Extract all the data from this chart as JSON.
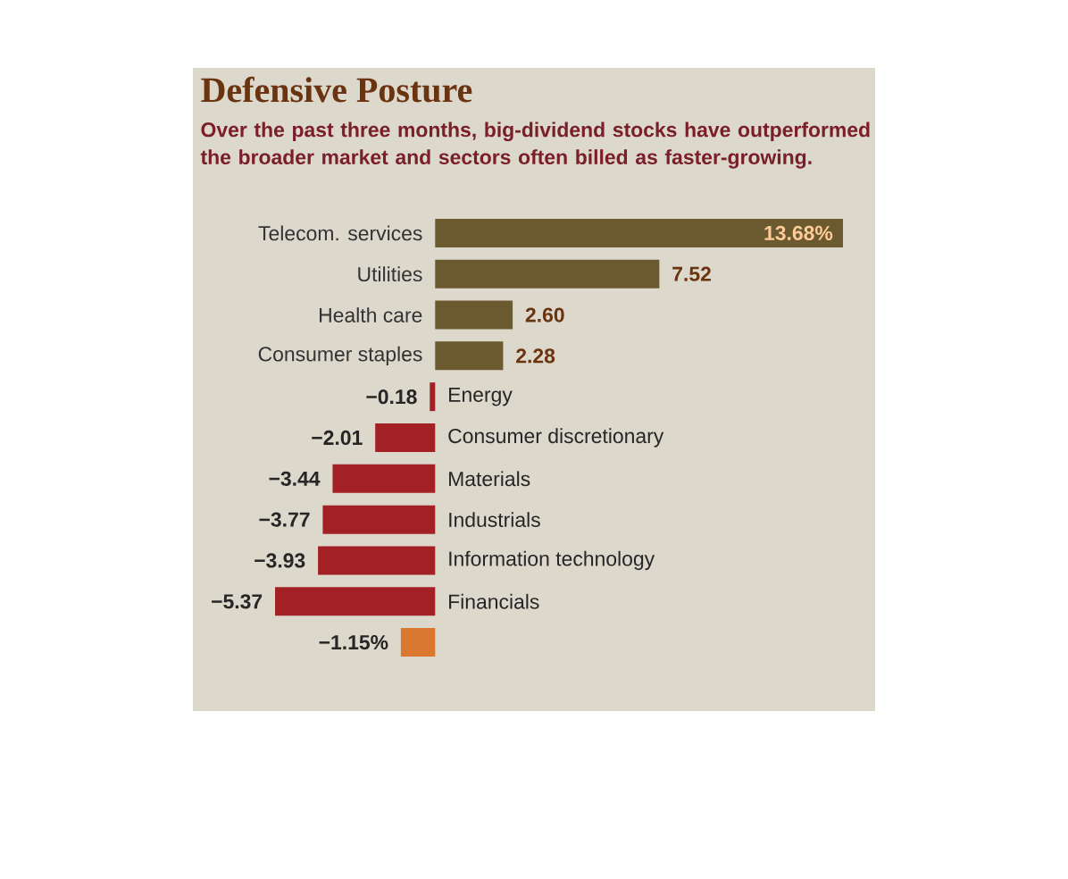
{
  "chart_data": {
    "type": "bar",
    "orientation": "horizontal",
    "title": "Defensive Posture",
    "subtitle": "Over the past three months, big-dividend stocks have outperformed the broader market and sectors often billed as faster-growing.",
    "categories": [
      "Telecom. services",
      "Utilities",
      "Health care",
      "Consumer staples",
      "Energy",
      "Consumer discretionary",
      "Materials",
      "Industrials",
      "Information technology",
      "Financials",
      null
    ],
    "values": [
      13.68,
      7.52,
      2.6,
      2.28,
      -0.18,
      -2.01,
      -3.44,
      -3.77,
      -3.93,
      -5.37,
      -1.15
    ],
    "value_labels": [
      "13.68%",
      "7.52",
      "2.60",
      "2.28",
      "−0.18",
      "−2.01",
      "−3.44",
      "−3.77",
      "−3.93",
      "−5.37",
      "−1.15%"
    ],
    "colors": [
      "#6b5a30",
      "#6b5a30",
      "#6b5a30",
      "#6b5a30",
      "#a32024",
      "#a32024",
      "#a32024",
      "#a32024",
      "#a32024",
      "#a32024",
      "#d9782e"
    ]
  }
}
